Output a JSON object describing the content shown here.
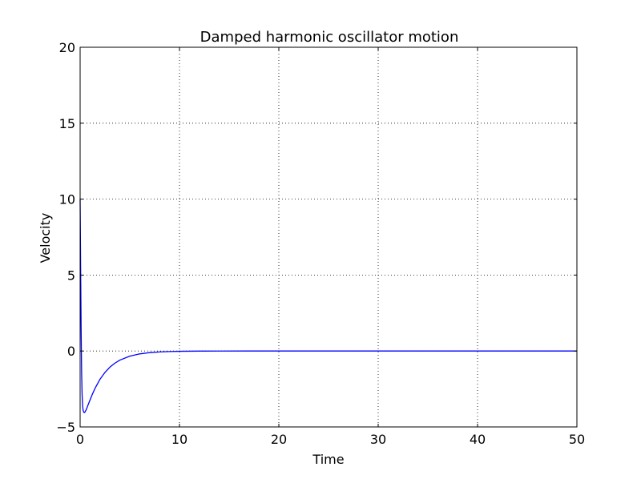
{
  "chart_data": {
    "type": "line",
    "title": "Damped harmonic oscillator motion",
    "xlabel": "Time",
    "ylabel": "Velocity",
    "xlim": [
      0,
      50
    ],
    "ylim": [
      -5,
      20
    ],
    "xticks": [
      0,
      10,
      20,
      30,
      40,
      50
    ],
    "yticks": [
      -5,
      0,
      5,
      10,
      15,
      20
    ],
    "grid": true,
    "series": [
      {
        "color": "#0000ff",
        "x": [
          0,
          0.05,
          0.1,
          0.15,
          0.2,
          0.25,
          0.3,
          0.35,
          0.4,
          0.45,
          0.5,
          0.6,
          0.7,
          0.8,
          1.0,
          1.25,
          1.5,
          2.0,
          2.5,
          3.0,
          3.5,
          4.0,
          5.0,
          6.0,
          7.0,
          8.0,
          9.0,
          10.0,
          12.0,
          14.0,
          17.0,
          20.0,
          25.0,
          30.0,
          40.0,
          50.0
        ],
        "y": [
          10.0,
          5.5,
          1.5,
          -1.4,
          -2.9,
          -3.6,
          -3.9,
          -4.0,
          -4.05,
          -4.05,
          -4.0,
          -3.88,
          -3.72,
          -3.55,
          -3.22,
          -2.82,
          -2.46,
          -1.86,
          -1.41,
          -1.06,
          -0.8,
          -0.6,
          -0.34,
          -0.19,
          -0.11,
          -0.06,
          -0.035,
          -0.02,
          -0.006,
          -0.002,
          -0.0005,
          0,
          0,
          0,
          0,
          0
        ]
      }
    ]
  }
}
